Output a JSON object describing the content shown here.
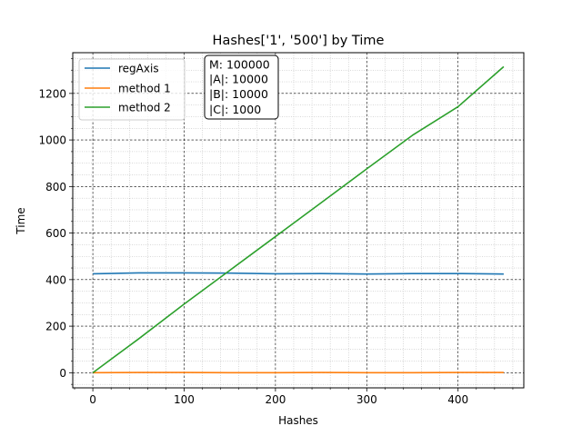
{
  "chart_data": {
    "type": "line",
    "title": "Hashes['1', '500'] by Time",
    "xlabel": "Hashes",
    "ylabel": "Time",
    "xlim": [
      -22,
      472
    ],
    "ylim": [
      -65,
      1375
    ],
    "x_ticks": [
      0,
      100,
      200,
      300,
      400
    ],
    "y_ticks": [
      0,
      200,
      400,
      600,
      800,
      1000,
      1200
    ],
    "grid": {
      "major": true,
      "minor": true
    },
    "legend_position": "top-left",
    "annotation": {
      "lines": [
        "M: 100000",
        "|A|: 10000",
        "|B|: 10000",
        "|C|: 1000"
      ],
      "position": "top-center"
    },
    "series": [
      {
        "name": "regAxis",
        "color": "#1f77b4",
        "x": [
          0,
          50,
          100,
          150,
          200,
          250,
          300,
          350,
          400,
          450
        ],
        "y": [
          425,
          429,
          429,
          428,
          425,
          426,
          424,
          426,
          426,
          424
        ]
      },
      {
        "name": "method 1",
        "color": "#ff7f0e",
        "x": [
          0,
          50,
          100,
          150,
          200,
          250,
          300,
          350,
          400,
          450
        ],
        "y": [
          0,
          1,
          1,
          0,
          0,
          1,
          0,
          0,
          1,
          1
        ]
      },
      {
        "name": "method 2",
        "color": "#2ca02c",
        "x": [
          0,
          50,
          100,
          150,
          200,
          250,
          300,
          350,
          400,
          450
        ],
        "y": [
          0,
          145,
          295,
          440,
          585,
          730,
          876,
          1020,
          1143,
          1315
        ]
      }
    ]
  }
}
